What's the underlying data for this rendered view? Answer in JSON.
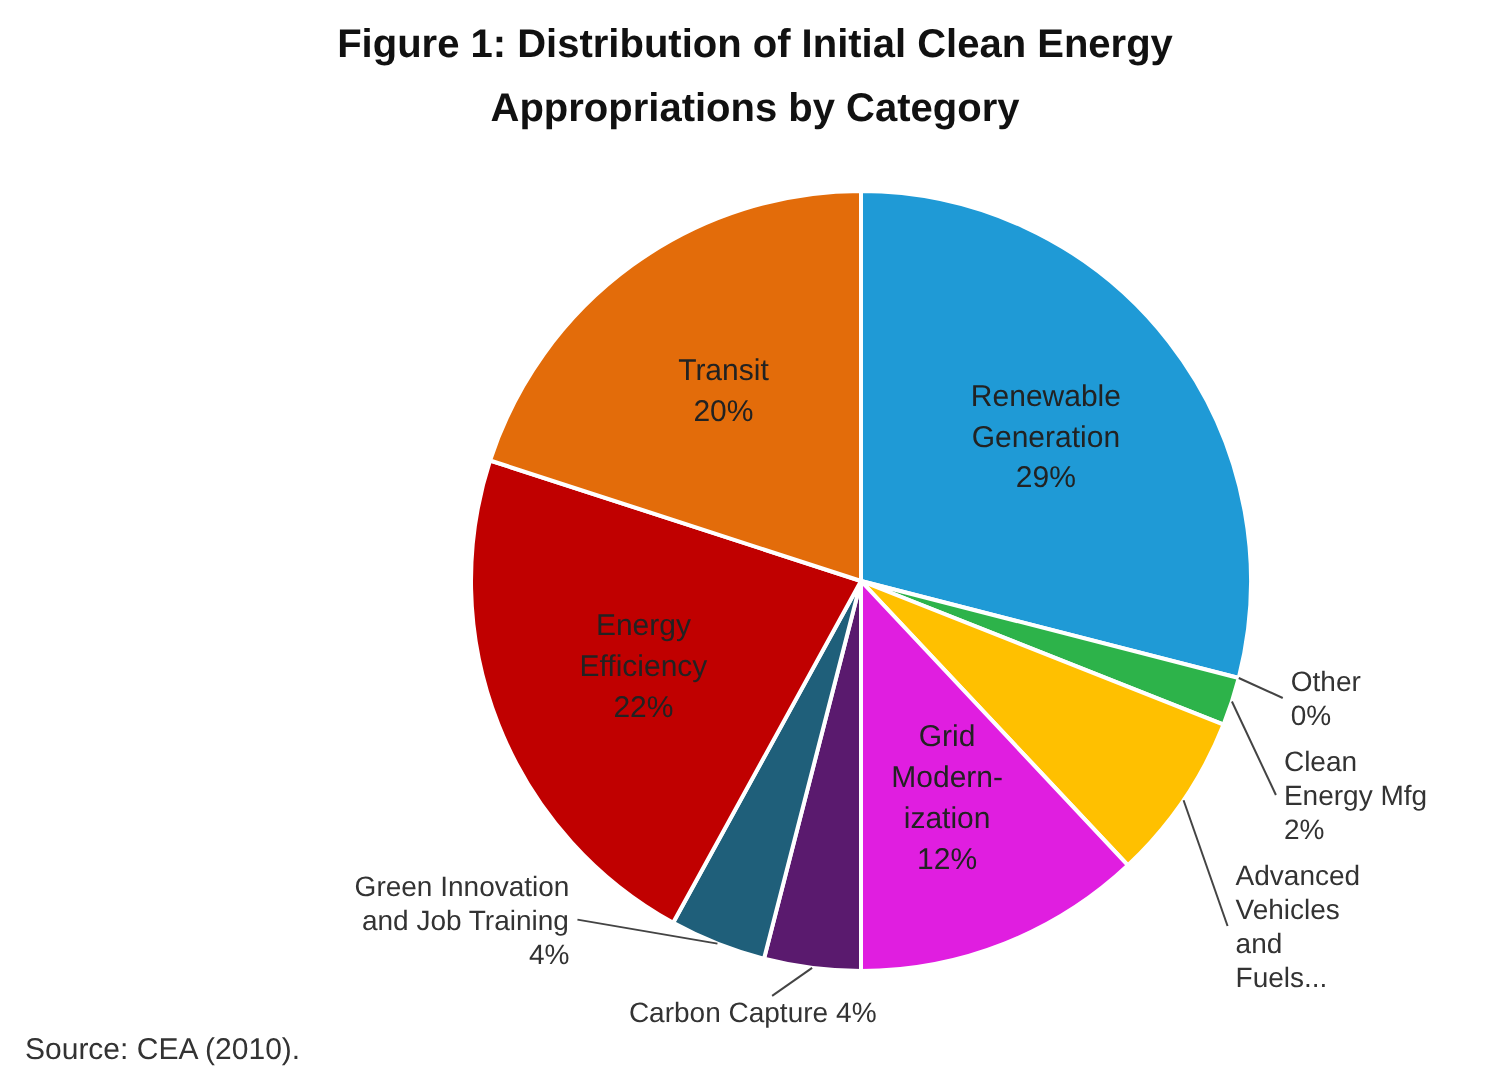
{
  "chart_data": {
    "type": "pie",
    "title": "Figure 1: Distribution of Initial Clean Energy Appropriations by Category",
    "categories": [
      "Renewable Generation",
      "Other",
      "Clean Energy Mfg",
      "Advanced Vehicles and Fuels...",
      "Grid Modern-ization",
      "Carbon Capture",
      "Green Innovation and Job Training",
      "Energy Efficiency",
      "Transit"
    ],
    "values": [
      29,
      0,
      2,
      7,
      12,
      4,
      4,
      22,
      20
    ],
    "value_labels": [
      "29%",
      "0%",
      "2%",
      null,
      "12%",
      "4%",
      "4%",
      "22%",
      "20%"
    ],
    "colors": [
      "#1f9ad6",
      "#e8561a",
      "#2db34a",
      "#ffc000",
      "#e01ee0",
      "#5a1a6e",
      "#1f5f7a",
      "#c00000",
      "#e36c0a"
    ],
    "annotations": [
      "Source: CEA (2010)."
    ]
  }
}
